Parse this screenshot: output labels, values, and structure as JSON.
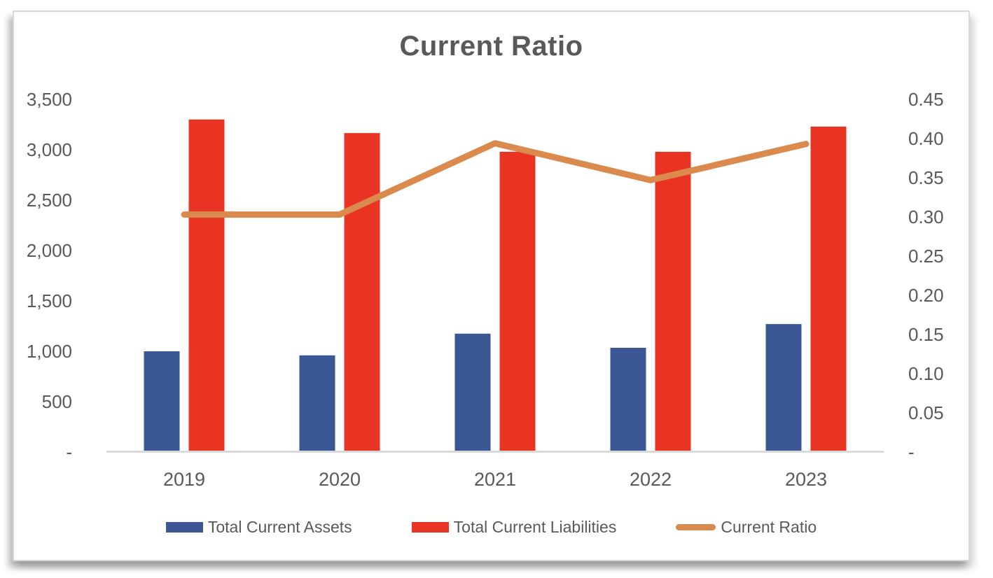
{
  "chart_data": {
    "type": "bar+line-combo",
    "title": "Current Ratio",
    "categories": [
      "2019",
      "2020",
      "2021",
      "2022",
      "2023"
    ],
    "series": [
      {
        "name": "Total Current Assets",
        "type": "bar",
        "axis": "left",
        "color": "#3B5794",
        "values": [
          1000,
          960,
          1175,
          1035,
          1270
        ]
      },
      {
        "name": "Total Current Liabilities",
        "type": "bar",
        "axis": "left",
        "color": "#E93323",
        "values": [
          3300,
          3165,
          2980,
          2980,
          3230
        ]
      },
      {
        "name": "Current Ratio",
        "type": "line",
        "axis": "right",
        "color": "#DB8A4D",
        "values": [
          0.303,
          0.303,
          0.394,
          0.347,
          0.393
        ]
      }
    ],
    "left_axis": {
      "min": 0,
      "max": 3500,
      "step": 500,
      "tick_labels": [
        "-",
        "500",
        "1,000",
        "1,500",
        "2,000",
        "2,500",
        "3,000",
        "3,500"
      ]
    },
    "right_axis": {
      "min": 0,
      "max": 0.45,
      "step": 0.05,
      "tick_labels": [
        "-",
        "0.05",
        "0.10",
        "0.15",
        "0.20",
        "0.25",
        "0.30",
        "0.35",
        "0.40",
        "0.45"
      ]
    },
    "grid": false,
    "legend_position": "bottom",
    "style": {
      "text_color": "#595959",
      "axis_line_color": "#D9D9D9",
      "panel_border_color": "#D8D8D8",
      "background": "#FFFFFF"
    }
  }
}
